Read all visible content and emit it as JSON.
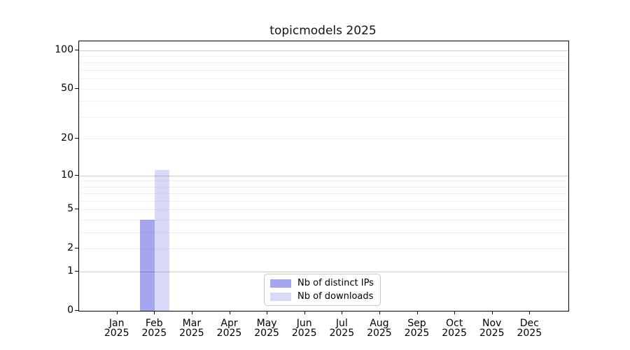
{
  "chart_data": {
    "type": "bar",
    "title": "topicmodels 2025",
    "categories": [
      "Jan 2025",
      "Feb 2025",
      "Mar 2025",
      "Apr 2025",
      "May 2025",
      "Jun 2025",
      "Jul 2025",
      "Aug 2025",
      "Sep 2025",
      "Oct 2025",
      "Nov 2025",
      "Dec 2025"
    ],
    "series": [
      {
        "name": "Nb of distinct IPs",
        "color": "#a6a6f0",
        "values": [
          0,
          4,
          0,
          0,
          0,
          0,
          0,
          0,
          0,
          0,
          0,
          0
        ]
      },
      {
        "name": "Nb of downloads",
        "color": "#d9d9f8",
        "values": [
          0,
          11,
          0,
          0,
          0,
          0,
          0,
          0,
          0,
          0,
          0,
          0
        ]
      }
    ],
    "xlabel": "",
    "ylabel": "",
    "y_axis": {
      "scale": "log10(value+1)",
      "tick_values": [
        0,
        1,
        2,
        5,
        10,
        20,
        50,
        100
      ],
      "tick_labels": [
        "0",
        "1",
        "2",
        "5",
        "10",
        "20",
        "50",
        "100"
      ],
      "major_gridlines": [
        1,
        10,
        100
      ],
      "minor_gridlines": [
        2,
        3,
        4,
        5,
        6,
        7,
        8,
        9,
        20,
        30,
        40,
        50,
        60,
        70,
        80,
        90
      ],
      "ylim": [
        0,
        117
      ]
    },
    "grid": true,
    "legend_position": "bottom-center",
    "colors": {
      "frame": "#000000",
      "major_grid": "#cccccc",
      "minor_grid": "#f0f0f0",
      "background": "#ffffff",
      "text": "#141414"
    }
  }
}
